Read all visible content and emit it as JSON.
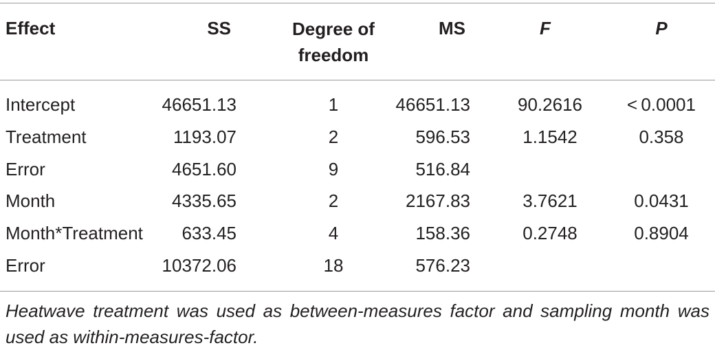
{
  "table": {
    "header": [
      "Effect",
      "SS",
      "Degree of freedom",
      "MS",
      "F",
      "P"
    ],
    "rows": [
      [
        "Intercept",
        "46651.13",
        "1",
        "46651.13",
        "90.2616",
        "< 0.0001"
      ],
      [
        "Treatment",
        "1193.07",
        "2",
        "596.53",
        "1.1542",
        "0.358"
      ],
      [
        "Error",
        "4651.60",
        "9",
        "516.84"
      ],
      [
        "Month",
        "4335.65",
        "2",
        "2167.83",
        "3.7621",
        "0.0431"
      ],
      [
        "Month*Treatment",
        "633.45",
        "4",
        "158.36",
        "0.2748",
        "0.8904"
      ],
      [
        "Error",
        "10372.06",
        "18",
        "576.23"
      ]
    ]
  },
  "footnote": "Heatwave treatment was used as between-measures factor and sampling month was used as within-measures-factor."
}
